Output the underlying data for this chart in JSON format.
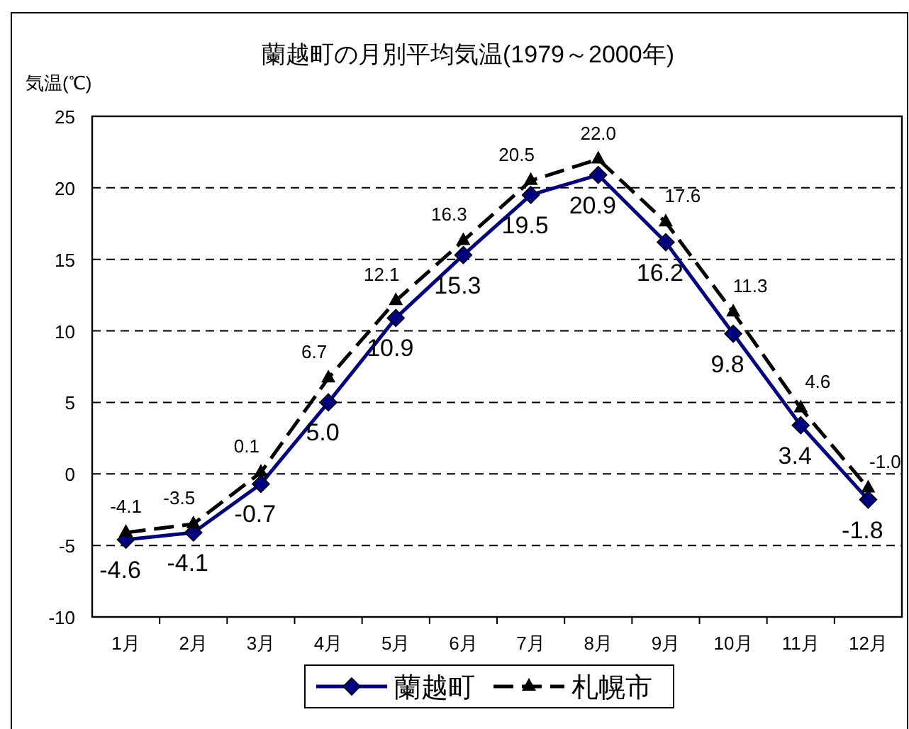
{
  "chart_data": {
    "type": "line",
    "title": "蘭越町の月別平均気温(1979～2000年)",
    "ylabel": "気温(℃)",
    "categories": [
      "1月",
      "2月",
      "3月",
      "4月",
      "5月",
      "6月",
      "7月",
      "8月",
      "9月",
      "10月",
      "11月",
      "12月"
    ],
    "series": [
      {
        "name": "蘭越町",
        "color": "#000080",
        "marker": "diamond",
        "line_style": "solid",
        "values": [
          -4.6,
          -4.1,
          -0.7,
          5.0,
          10.9,
          15.3,
          19.5,
          20.9,
          16.2,
          9.8,
          3.4,
          -1.8
        ],
        "value_labels": [
          "-4.6",
          "-4.1",
          "-0.7",
          "5.0",
          "10.9",
          "15.3",
          "19.5",
          "20.9",
          "16.2",
          "9.8",
          "3.4",
          "-1.8"
        ]
      },
      {
        "name": "札幌市",
        "color": "#000000",
        "marker": "triangle",
        "line_style": "dashed",
        "values": [
          -4.1,
          -3.5,
          0.1,
          6.7,
          12.1,
          16.3,
          20.5,
          22.0,
          17.6,
          11.3,
          4.6,
          -1.0
        ],
        "value_labels": [
          "-4.1",
          "-3.5",
          "0.1",
          "6.7",
          "12.1",
          "16.3",
          "20.5",
          "22.0",
          "17.6",
          "11.3",
          "4.6",
          "-1.0"
        ]
      }
    ],
    "ylim": [
      -10,
      25
    ],
    "yticks": [
      -10,
      -5,
      0,
      5,
      10,
      15,
      20,
      25
    ],
    "grid": "y",
    "legend": "bottom"
  }
}
